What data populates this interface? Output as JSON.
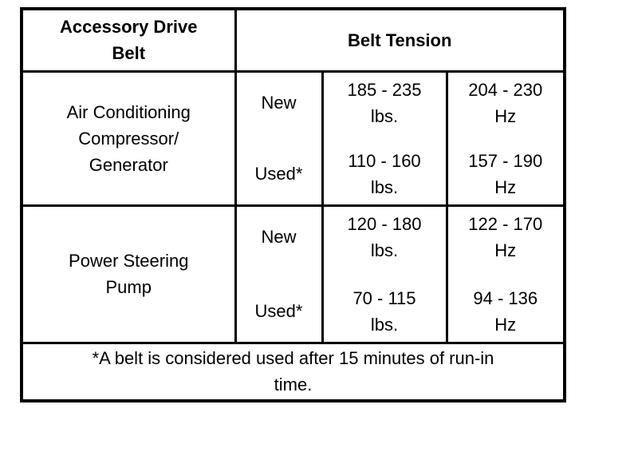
{
  "table": {
    "header": {
      "belt_column": "Accessory Drive\nBelt",
      "tension_column": "Belt Tension"
    },
    "sections": [
      {
        "name": "Air Conditioning\nCompressor/\nGenerator",
        "rows": [
          {
            "condition": "New",
            "tension_lbs": "185 - 235\nlbs.",
            "tension_hz": "204 - 230\nHz"
          },
          {
            "condition": "Used*",
            "tension_lbs": "110 - 160\nlbs.",
            "tension_hz": "157 - 190\nHz"
          }
        ]
      },
      {
        "name": "Power Steering\nPump",
        "rows": [
          {
            "condition": "New",
            "tension_lbs": "120 - 180\nlbs.",
            "tension_hz": "122 - 170\nHz"
          },
          {
            "condition": "Used*",
            "tension_lbs": "70 - 115\nlbs.",
            "tension_hz": "94 - 136\nHz"
          }
        ]
      }
    ],
    "footnote": "*A belt is considered used after 15 minutes of run-in\ntime."
  }
}
